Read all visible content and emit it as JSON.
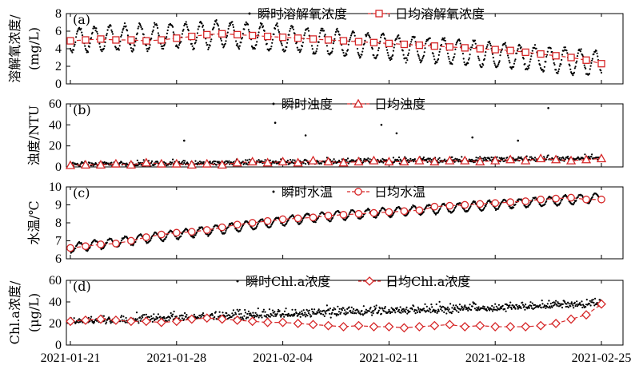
{
  "chart_data": [
    {
      "type": "line",
      "panel_label": "(a)",
      "ylabel": "溶解氧浓度/\n(mg/L)",
      "ylabel_lines": [
        "溶解氧浓度/",
        "(mg/L)"
      ],
      "ylim": [
        0,
        8
      ],
      "yticks": [
        0,
        2,
        4,
        6,
        8
      ],
      "legend_position": "top",
      "series": [
        {
          "name": "瞬时溶解氧浓度",
          "style": "dots",
          "color": "#000000",
          "pattern": {
            "kind": "diurnal",
            "mean_start": 5.0,
            "mean_peak": 5.7,
            "mean_peak_day": 10,
            "mean_end": 2.3,
            "amplitude": 1.4,
            "noise": 0.25,
            "samples_per_day": 24
          }
        },
        {
          "name": "日均溶解氧浓度",
          "style": "line-square",
          "color": "#d62728",
          "x": [
            "2021-01-21",
            "2021-01-22",
            "2021-01-23",
            "2021-01-24",
            "2021-01-25",
            "2021-01-26",
            "2021-01-27",
            "2021-01-28",
            "2021-01-29",
            "2021-01-30",
            "2021-01-31",
            "2021-02-01",
            "2021-02-02",
            "2021-02-03",
            "2021-02-04",
            "2021-02-05",
            "2021-02-06",
            "2021-02-07",
            "2021-02-08",
            "2021-02-09",
            "2021-02-10",
            "2021-02-11",
            "2021-02-12",
            "2021-02-13",
            "2021-02-14",
            "2021-02-15",
            "2021-02-16",
            "2021-02-17",
            "2021-02-18",
            "2021-02-19",
            "2021-02-20",
            "2021-02-21",
            "2021-02-22",
            "2021-02-23",
            "2021-02-24",
            "2021-02-25"
          ],
          "values": [
            4.9,
            5.0,
            5.1,
            5.0,
            5.0,
            4.9,
            5.0,
            5.2,
            5.4,
            5.6,
            5.7,
            5.6,
            5.5,
            5.4,
            5.3,
            5.2,
            5.1,
            5.0,
            4.9,
            4.8,
            4.7,
            4.6,
            4.5,
            4.4,
            4.3,
            4.2,
            4.1,
            4.0,
            3.9,
            3.8,
            3.6,
            3.4,
            3.2,
            3.0,
            2.7,
            2.3
          ]
        }
      ]
    },
    {
      "type": "line",
      "panel_label": "(b)",
      "ylabel": "浊度/NTU",
      "ylabel_lines": [
        "浊度/NTU"
      ],
      "ylim": [
        0,
        60
      ],
      "yticks": [
        0,
        20,
        40,
        60
      ],
      "legend_position": "top",
      "series": [
        {
          "name": "瞬时浊度",
          "style": "dots",
          "color": "#000000",
          "pattern": {
            "kind": "noisy",
            "mean_start": 2,
            "mean_end": 8,
            "noise": 3,
            "samples_per_day": 24
          },
          "outliers": [
            [
              "2021-01-28",
              25
            ],
            [
              "2021-02-03",
              42
            ],
            [
              "2021-02-05",
              30
            ],
            [
              "2021-02-10",
              40
            ],
            [
              "2021-02-11",
              32
            ],
            [
              "2021-02-16",
              28
            ],
            [
              "2021-02-19",
              25
            ],
            [
              "2021-02-21",
              56
            ]
          ]
        },
        {
          "name": "日均浊度",
          "style": "line-triangle",
          "color": "#d62728",
          "x": [
            "2021-01-21",
            "2021-01-22",
            "2021-01-23",
            "2021-01-24",
            "2021-01-25",
            "2021-01-26",
            "2021-01-27",
            "2021-01-28",
            "2021-01-29",
            "2021-01-30",
            "2021-01-31",
            "2021-02-01",
            "2021-02-02",
            "2021-02-03",
            "2021-02-04",
            "2021-02-05",
            "2021-02-06",
            "2021-02-07",
            "2021-02-08",
            "2021-02-09",
            "2021-02-10",
            "2021-02-11",
            "2021-02-12",
            "2021-02-13",
            "2021-02-14",
            "2021-02-15",
            "2021-02-16",
            "2021-02-17",
            "2021-02-18",
            "2021-02-19",
            "2021-02-20",
            "2021-02-21",
            "2021-02-22",
            "2021-02-23",
            "2021-02-24",
            "2021-02-25"
          ],
          "values": [
            1.5,
            2,
            2,
            3,
            2,
            4,
            3,
            3,
            2,
            3,
            2,
            4,
            5,
            4,
            5,
            4,
            6,
            5,
            4,
            5,
            6,
            5,
            5,
            6,
            5,
            6,
            6,
            5,
            6,
            7,
            6,
            8,
            7,
            6,
            7,
            8
          ]
        }
      ]
    },
    {
      "type": "line",
      "panel_label": "(c)",
      "ylabel": "水温/℃",
      "ylabel_lines": [
        "水温/℃"
      ],
      "ylim": [
        6,
        10
      ],
      "yticks": [
        6,
        7,
        8,
        9,
        10
      ],
      "legend_position": "top",
      "series": [
        {
          "name": "瞬时水温",
          "style": "dots",
          "color": "#000000",
          "pattern": {
            "kind": "diurnal",
            "mean_start": 6.6,
            "mean_peak": 8.3,
            "mean_peak_day": 16,
            "mean_end": 9.4,
            "amplitude": 0.25,
            "noise": 0.05,
            "samples_per_day": 24
          }
        },
        {
          "name": "日均水温",
          "style": "line-circle",
          "color": "#d62728",
          "x": [
            "2021-01-21",
            "2021-01-22",
            "2021-01-23",
            "2021-01-24",
            "2021-01-25",
            "2021-01-26",
            "2021-01-27",
            "2021-01-28",
            "2021-01-29",
            "2021-01-30",
            "2021-01-31",
            "2021-02-01",
            "2021-02-02",
            "2021-02-03",
            "2021-02-04",
            "2021-02-05",
            "2021-02-06",
            "2021-02-07",
            "2021-02-08",
            "2021-02-09",
            "2021-02-10",
            "2021-02-11",
            "2021-02-12",
            "2021-02-13",
            "2021-02-14",
            "2021-02-15",
            "2021-02-16",
            "2021-02-17",
            "2021-02-18",
            "2021-02-19",
            "2021-02-20",
            "2021-02-21",
            "2021-02-22",
            "2021-02-23",
            "2021-02-24",
            "2021-02-25"
          ],
          "values": [
            6.6,
            6.7,
            6.8,
            6.85,
            7.0,
            7.2,
            7.35,
            7.45,
            7.5,
            7.6,
            7.75,
            7.9,
            8.0,
            8.1,
            8.2,
            8.25,
            8.3,
            8.4,
            8.45,
            8.5,
            8.55,
            8.6,
            8.65,
            8.7,
            8.9,
            8.95,
            9.0,
            9.05,
            9.1,
            9.15,
            9.2,
            9.3,
            9.35,
            9.4,
            9.3,
            9.3
          ]
        }
      ]
    },
    {
      "type": "line",
      "panel_label": "(d)",
      "ylabel": "Chl.a浓度/\n(μg/L)",
      "ylabel_lines": [
        "Chl.a浓度/",
        "(μg/L)"
      ],
      "ylim": [
        0,
        60
      ],
      "yticks": [
        0,
        20,
        40,
        60
      ],
      "legend_position": "top",
      "series": [
        {
          "name": "瞬时Chl.a浓度",
          "style": "dots",
          "color": "#000000",
          "pattern": {
            "kind": "noisy",
            "mean_start": 22,
            "mean_end": 38,
            "noise": 5,
            "samples_per_day": 24
          }
        },
        {
          "name": "日均Chl.a浓度",
          "style": "line-diamond",
          "color": "#d62728",
          "x": [
            "2021-01-21",
            "2021-01-22",
            "2021-01-23",
            "2021-01-24",
            "2021-01-25",
            "2021-01-26",
            "2021-01-27",
            "2021-01-28",
            "2021-01-29",
            "2021-01-30",
            "2021-01-31",
            "2021-02-01",
            "2021-02-02",
            "2021-02-03",
            "2021-02-04",
            "2021-02-05",
            "2021-02-06",
            "2021-02-07",
            "2021-02-08",
            "2021-02-09",
            "2021-02-10",
            "2021-02-11",
            "2021-02-12",
            "2021-02-13",
            "2021-02-14",
            "2021-02-15",
            "2021-02-16",
            "2021-02-17",
            "2021-02-18",
            "2021-02-19",
            "2021-02-20",
            "2021-02-21",
            "2021-02-22",
            "2021-02-23",
            "2021-02-24",
            "2021-02-25"
          ],
          "values": [
            22,
            23,
            24,
            23,
            22,
            22,
            21,
            22,
            24,
            25,
            24,
            23,
            22,
            21,
            21,
            20,
            19,
            18,
            17,
            18,
            17,
            17,
            16,
            17,
            18,
            19,
            17,
            18,
            17,
            17,
            17,
            18,
            20,
            24,
            28,
            38
          ]
        }
      ]
    }
  ],
  "x_axis": {
    "start": "2021-01-21",
    "end": "2021-02-25",
    "tick_labels": [
      "2021-01-21",
      "2021-01-28",
      "2021-02-04",
      "2021-02-11",
      "2021-02-18",
      "2021-02-25"
    ]
  }
}
